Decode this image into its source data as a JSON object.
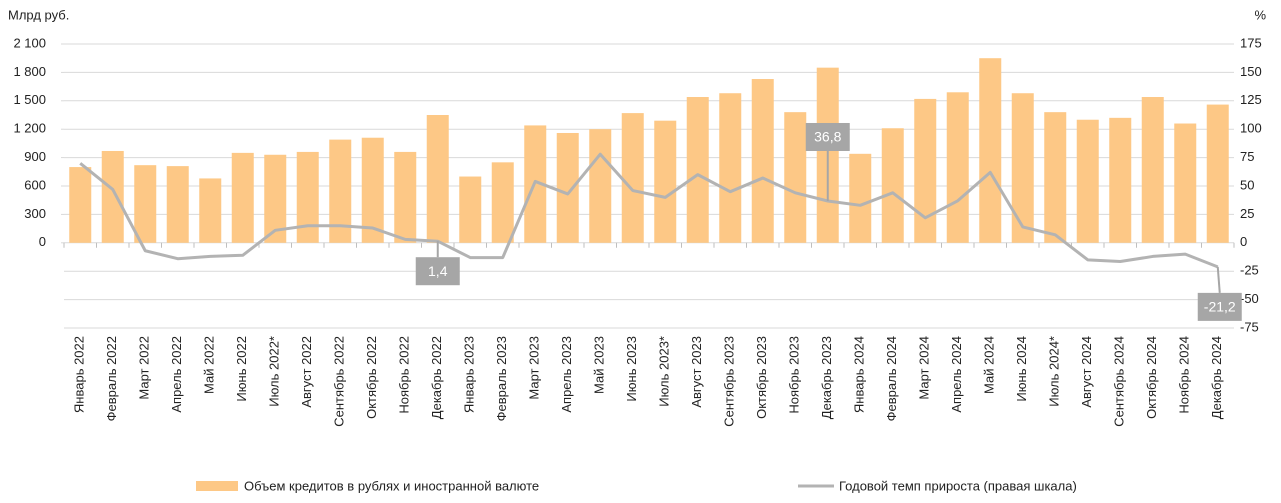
{
  "chart_data": {
    "type": "bar-line",
    "y_label": "Млрд руб.",
    "y2_label": "%",
    "categories": [
      "Январь 2022",
      "Февраль 2022",
      "Март 2022",
      "Апрель 2022",
      "Май 2022",
      "Июнь 2022",
      "Июль 2022*",
      "Август 2022",
      "Сентябрь 2022",
      "Октябрь 2022",
      "Ноябрь 2022",
      "Декабрь 2022",
      "Январь 2023",
      "Февраль 2023",
      "Март 2023",
      "Апрель 2023",
      "Май 2023",
      "Июнь 2023",
      "Июль 2023*",
      "Август 2023",
      "Сентябрь 2023",
      "Октябрь 2023",
      "Ноябрь 2023",
      "Декабрь 2023",
      "Январь 2024",
      "Февраль 2024",
      "Март 2024",
      "Апрель 2024",
      "Май 2024",
      "Июнь 2024",
      "Июль 2024*",
      "Август 2024",
      "Сентябрь 2024",
      "Октябрь 2024",
      "Ноябрь 2024",
      "Декабрь 2024"
    ],
    "series": [
      {
        "name": "Объем кредитов в рублях и иностранной валюте",
        "type": "bar",
        "color": "#fdc886",
        "values": [
          800,
          970,
          820,
          810,
          680,
          950,
          930,
          960,
          1090,
          1110,
          960,
          1350,
          700,
          850,
          1240,
          1160,
          1200,
          1370,
          1290,
          1540,
          1580,
          1730,
          1380,
          1850,
          940,
          1210,
          1520,
          1590,
          1950,
          1580,
          1380,
          1300,
          1320,
          1540,
          1260,
          1460
        ]
      },
      {
        "name": "Годовой темп прироста (правая шкала)",
        "type": "line",
        "axis": "y2",
        "color": "#b3b3b3",
        "values": [
          70,
          47,
          -7,
          -14,
          -12,
          -11,
          11,
          15,
          15,
          13,
          3,
          1.4,
          -13,
          -13,
          54,
          43,
          78,
          46,
          40,
          60,
          45,
          57,
          44,
          36.8,
          33,
          44,
          22,
          37,
          62,
          14,
          7,
          -15,
          -16.5,
          -12,
          -10,
          -21.2
        ],
        "value_labels": [
          null,
          null,
          null,
          null,
          null,
          null,
          null,
          null,
          null,
          null,
          null,
          "1,4",
          null,
          null,
          null,
          null,
          null,
          null,
          null,
          null,
          null,
          null,
          null,
          "36,8",
          null,
          null,
          null,
          null,
          null,
          null,
          null,
          null,
          null,
          null,
          null,
          "-21,2"
        ]
      }
    ],
    "ylim": [
      -900,
      2100
    ],
    "yticks": [
      0,
      300,
      600,
      900,
      {
        "value": 1200,
        "label": "1 200"
      },
      {
        "value": 1500,
        "label": "1 500"
      },
      {
        "value": 1800,
        "label": "1 800"
      },
      {
        "value": 2100,
        "label": "2 100"
      }
    ],
    "y2lim": [
      -75,
      175
    ],
    "y2ticks": [
      -75,
      -50,
      -25,
      0,
      25,
      50,
      75,
      100,
      125,
      150,
      175
    ],
    "grid": true
  }
}
